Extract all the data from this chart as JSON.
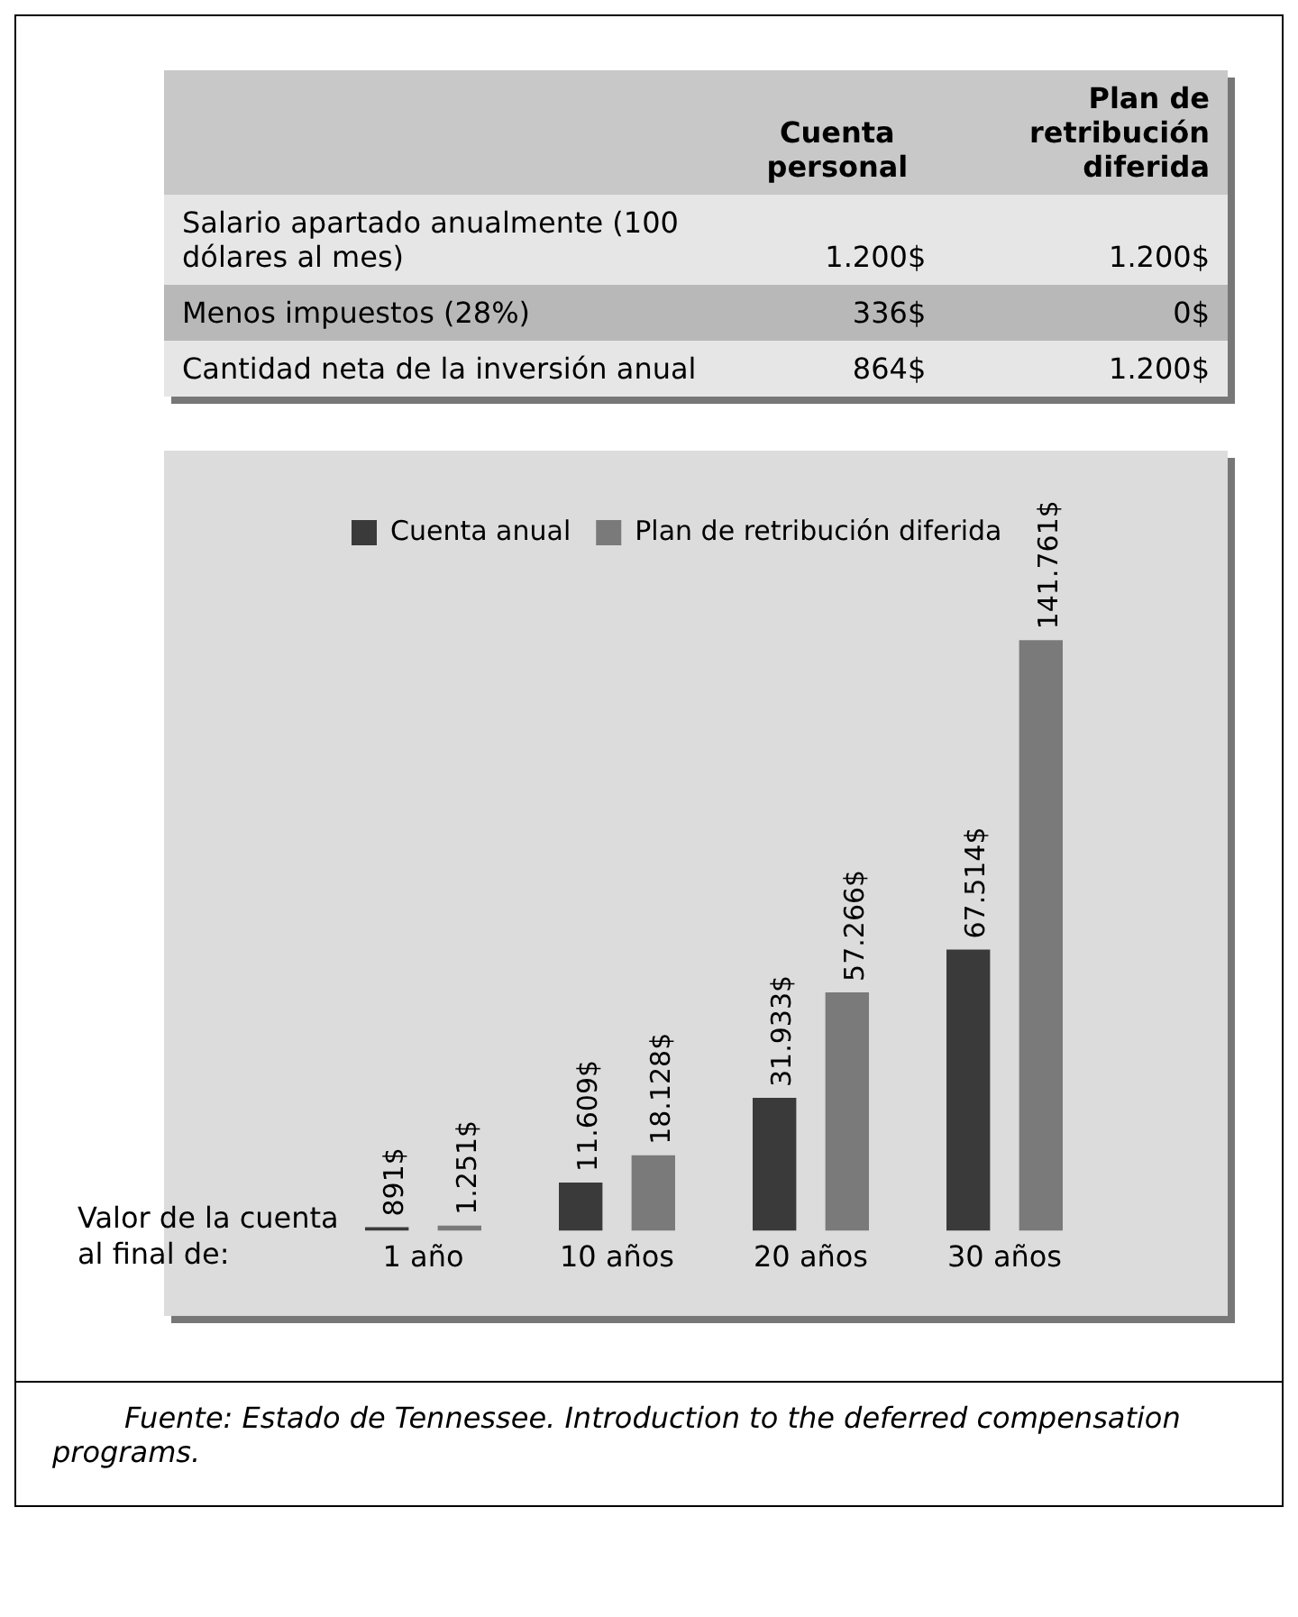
{
  "chart_data": [
    {
      "type": "other",
      "annotations": [
        "Cuenta personal",
        "Plan de retribución diferida",
        "Salario apartado anualmente (100 dólares al mes)",
        "1.200$",
        "1.200$",
        "Menos impuestos (28%)",
        "336$",
        "0$",
        "Cantidad neta de la inversión anual",
        "864$",
        "1.200$"
      ]
    },
    {
      "type": "bar",
      "categories": [
        "1 año",
        "10 años",
        "20 años",
        "30 años"
      ],
      "xlabel": "Valor de la cuenta al final de:",
      "legend": "top left",
      "grid": false,
      "tick_labels": "x",
      "annotations": [
        "Fuente: Estado de Tennessee. Introduction to the deferred compensation programs."
      ],
      "series": [
        {
          "name": "Cuenta anual",
          "color": "#3a3a3a",
          "values": [
            891,
            11609,
            31933,
            67514
          ],
          "value_labels": [
            "891$",
            "11.609$",
            "31.933$",
            "67.514$"
          ]
        },
        {
          "name": "Plan de retribución diferida",
          "color": "#7a7a7a",
          "values": [
            1251,
            18128,
            57266,
            141761
          ],
          "value_labels": [
            "1.251$",
            "18.128$",
            "57.266$",
            "141.761$"
          ]
        }
      ]
    }
  ]
}
